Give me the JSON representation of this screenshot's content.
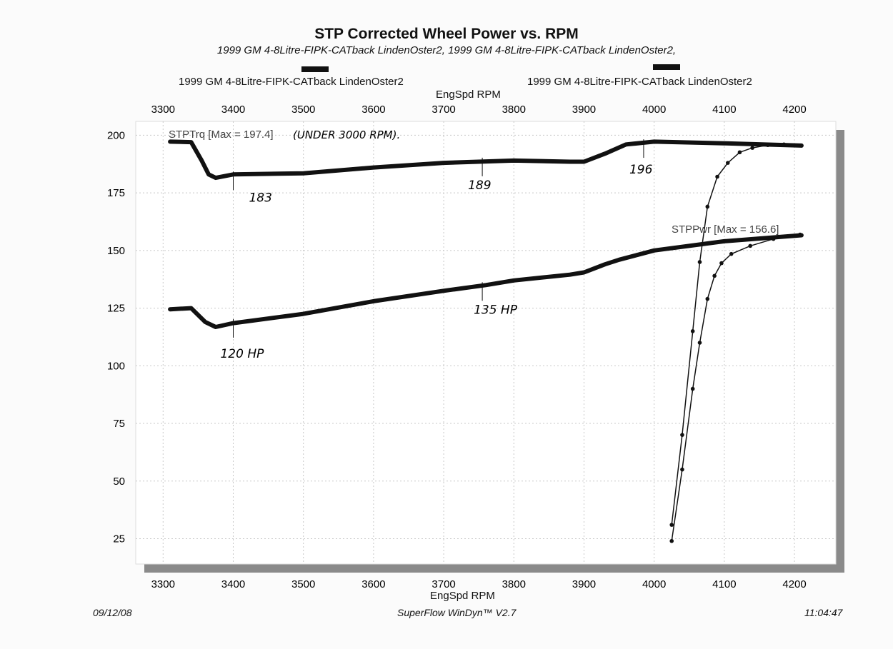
{
  "chart_data": {
    "type": "line",
    "title": "STP Corrected Wheel Power vs. RPM",
    "subtitle": "1999 GM 4-8Litre-FIPK-CATback LindenOster2, 1999 GM 4-8Litre-FIPK-CATback LindenOster2,",
    "legend": {
      "placement": "top",
      "entries": [
        "1999 GM 4-8Litre-FIPK-CATback LindenOster2",
        "1999 GM 4-8Litre-FIPK-CATback LindenOster2"
      ]
    },
    "xlabel": "EngSpd  RPM",
    "xlabel_top": "EngSpd  RPM",
    "xlim": [
      3261,
      4259
    ],
    "ylim": [
      14,
      206
    ],
    "xticks": [
      "3300",
      "3400",
      "3500",
      "3600",
      "3700",
      "3800",
      "3900",
      "4000",
      "4100",
      "4200"
    ],
    "yticks": [
      "25",
      "50",
      "75",
      "100",
      "125",
      "150",
      "175",
      "200"
    ],
    "grid": true,
    "series": [
      {
        "name": "STPTrq [Max = 197.4]",
        "style": "solid-thick",
        "x": [
          3310,
          3340,
          3355,
          3365,
          3375,
          3400,
          3500,
          3600,
          3700,
          3800,
          3880,
          3900,
          3930,
          3960,
          4000,
          4100,
          4210
        ],
        "y": [
          197.2,
          197,
          189,
          183,
          181.5,
          183,
          183.5,
          186,
          188,
          189,
          188.5,
          188.5,
          192,
          196,
          197.2,
          196.5,
          195.5
        ]
      },
      {
        "name": "STPPwr [Max = 156.6]",
        "style": "solid-thick",
        "x": [
          3310,
          3340,
          3360,
          3375,
          3400,
          3500,
          3600,
          3700,
          3760,
          3800,
          3880,
          3900,
          3930,
          3950,
          4000,
          4100,
          4210
        ],
        "y": [
          124.5,
          125,
          119,
          116.8,
          118.5,
          122.5,
          128,
          132.5,
          135,
          137,
          139.5,
          140.5,
          144,
          146,
          150,
          154,
          156.6
        ]
      },
      {
        "style": "dotted",
        "x": [
          4025,
          4040,
          4055,
          4065,
          4076,
          4090,
          4105,
          4122,
          4140,
          4162,
          4185,
          4210
        ],
        "y": [
          31,
          70,
          115,
          145,
          169,
          182,
          188,
          192.6,
          194.5,
          195.7,
          196,
          195.5
        ]
      },
      {
        "style": "dotted",
        "x": [
          4025,
          4040,
          4055,
          4065,
          4076,
          4086,
          4096,
          4110,
          4137,
          4170,
          4208
        ],
        "y": [
          24,
          55,
          90,
          110,
          129,
          139,
          144.5,
          148.5,
          152,
          155,
          156.9
        ]
      }
    ],
    "annotations": [
      {
        "text": "(UNDER 3000 RPM).",
        "kind": "handwritten"
      },
      {
        "text": "183",
        "x": 3400,
        "y": 183,
        "kind": "handwritten"
      },
      {
        "text": "189",
        "x": 3755,
        "y": 189,
        "kind": "handwritten"
      },
      {
        "text": "196",
        "x": 3985,
        "y": 197,
        "kind": "handwritten"
      },
      {
        "text": "120 HP",
        "x": 3400,
        "y": 119,
        "kind": "handwritten"
      },
      {
        "text": "135 HP",
        "x": 3755,
        "y": 135,
        "kind": "handwritten"
      }
    ]
  },
  "footer": {
    "date": "09/12/08",
    "software": "SuperFlow WinDyn™ V2.7",
    "time": "11:04:47"
  },
  "colors": {
    "line": "#111111",
    "grid": "#c8c8c8",
    "shadow": "#8a8a8a"
  }
}
